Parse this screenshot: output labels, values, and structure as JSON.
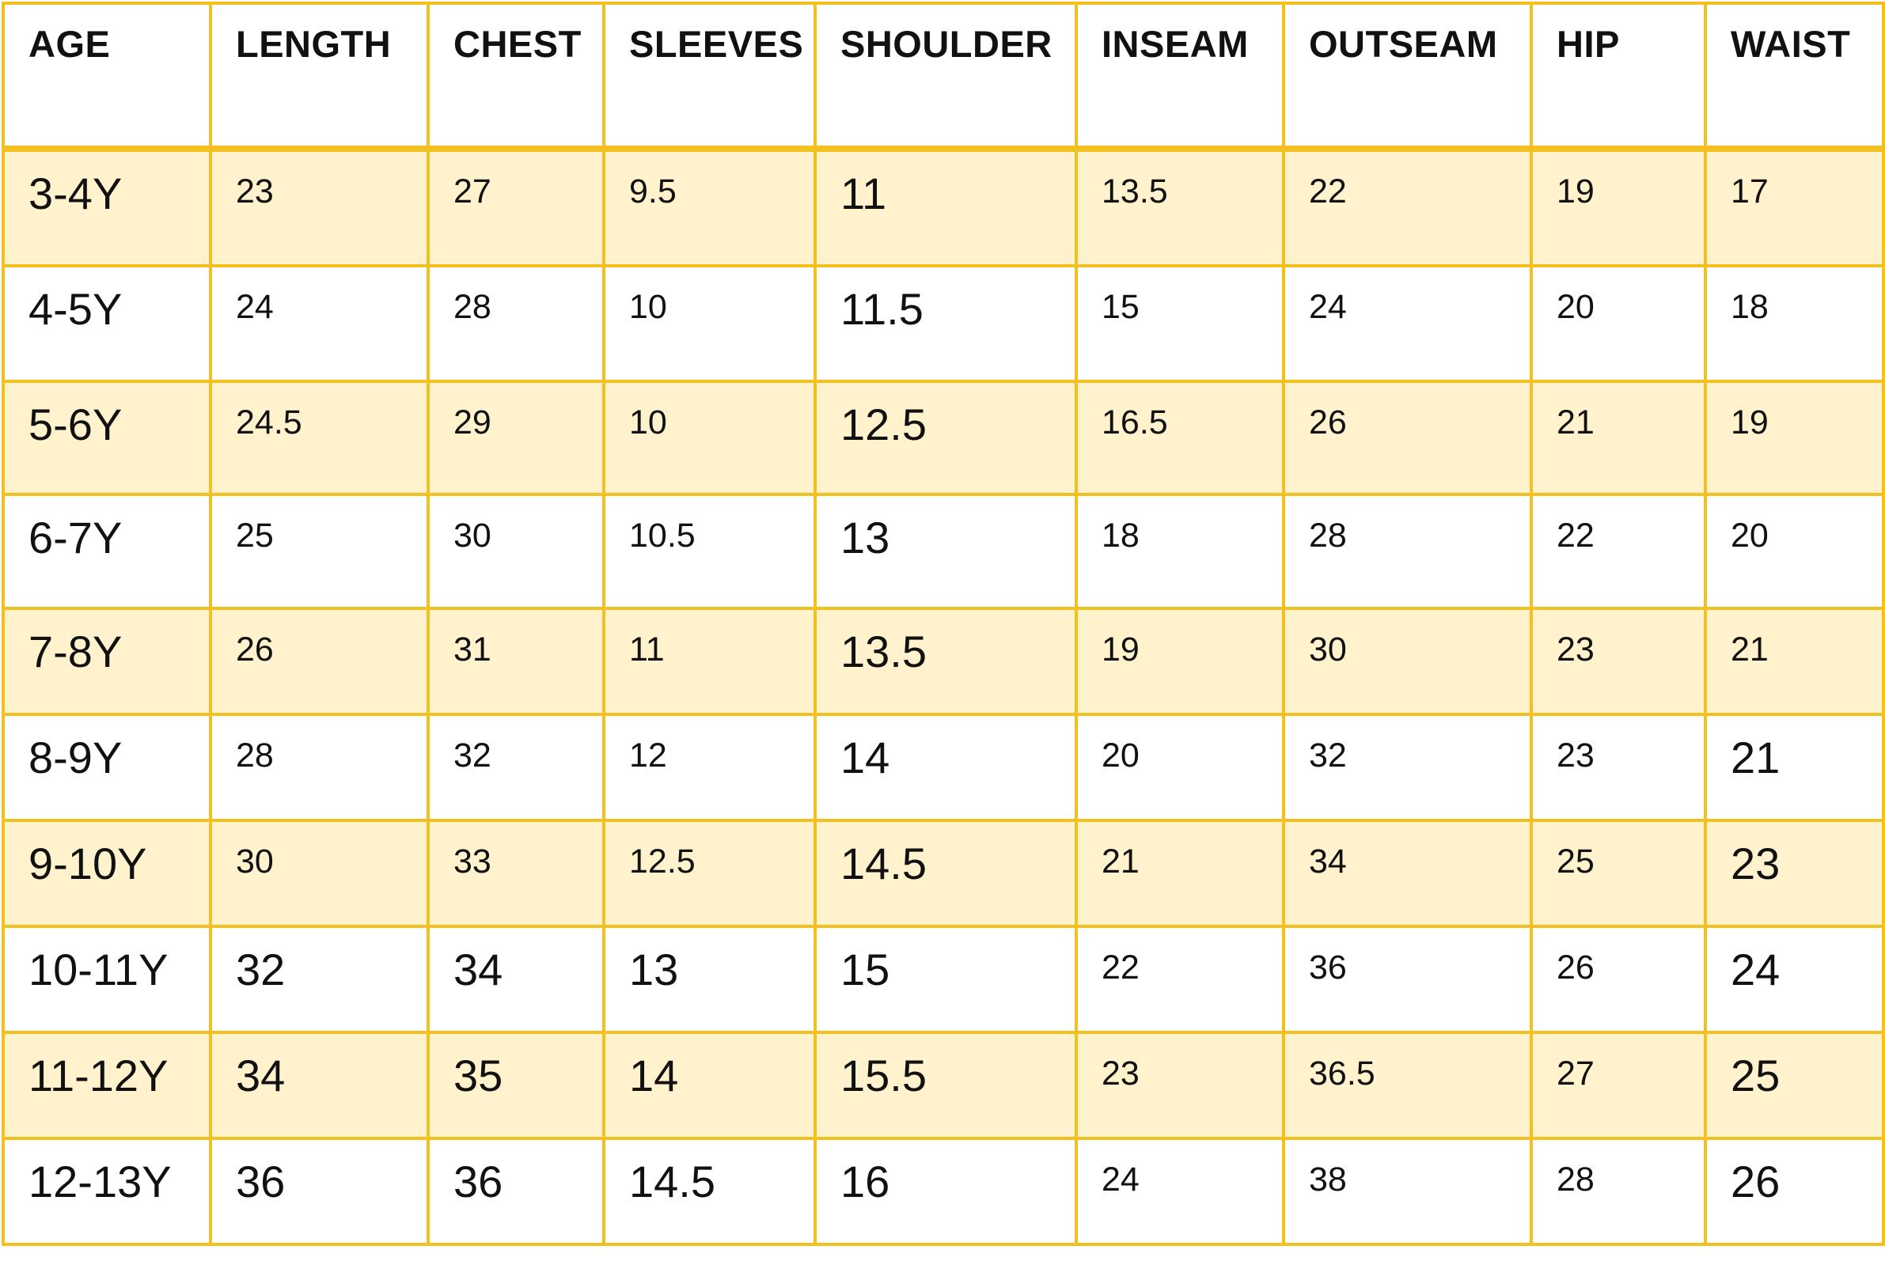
{
  "table": {
    "headers": [
      "AGE",
      "LENGTH",
      "CHEST",
      "SLEEVES",
      "SHOULDER",
      "INSEAM",
      "OUTSEAM",
      "HIP",
      "WAIST"
    ],
    "rows": [
      [
        "3-4Y",
        "23",
        "27",
        "9.5",
        "11",
        "13.5",
        "22",
        "19",
        "17"
      ],
      [
        "4-5Y",
        "24",
        "28",
        "10",
        "11.5",
        "15",
        "24",
        "20",
        "18"
      ],
      [
        "5-6Y",
        "24.5",
        "29",
        "10",
        "12.5",
        "16.5",
        "26",
        "21",
        "19"
      ],
      [
        "6-7Y",
        "25",
        "30",
        "10.5",
        "13",
        "18",
        "28",
        "22",
        "20"
      ],
      [
        "7-8Y",
        "26",
        "31",
        "11",
        "13.5",
        "19",
        "30",
        "23",
        "21"
      ],
      [
        "8-9Y",
        "28",
        "32",
        "12",
        "14",
        "20",
        "32",
        "23",
        "21"
      ],
      [
        "9-10Y",
        "30",
        "33",
        "12.5",
        "14.5",
        "21",
        "34",
        "25",
        "23"
      ],
      [
        "10-11Y",
        "32",
        "34",
        "13",
        "15",
        "22",
        "36",
        "26",
        "24"
      ],
      [
        "11-12Y",
        "34",
        "35",
        "14",
        "15.5",
        "23",
        "36.5",
        "27",
        "25"
      ],
      [
        "12-13Y",
        "36",
        "36",
        "14.5",
        "16",
        "24",
        "38",
        "28",
        "26"
      ]
    ]
  },
  "colors": {
    "border": "#f2c11f",
    "shaded_row": "#fff2cc",
    "plain_row": "#ffffff"
  }
}
